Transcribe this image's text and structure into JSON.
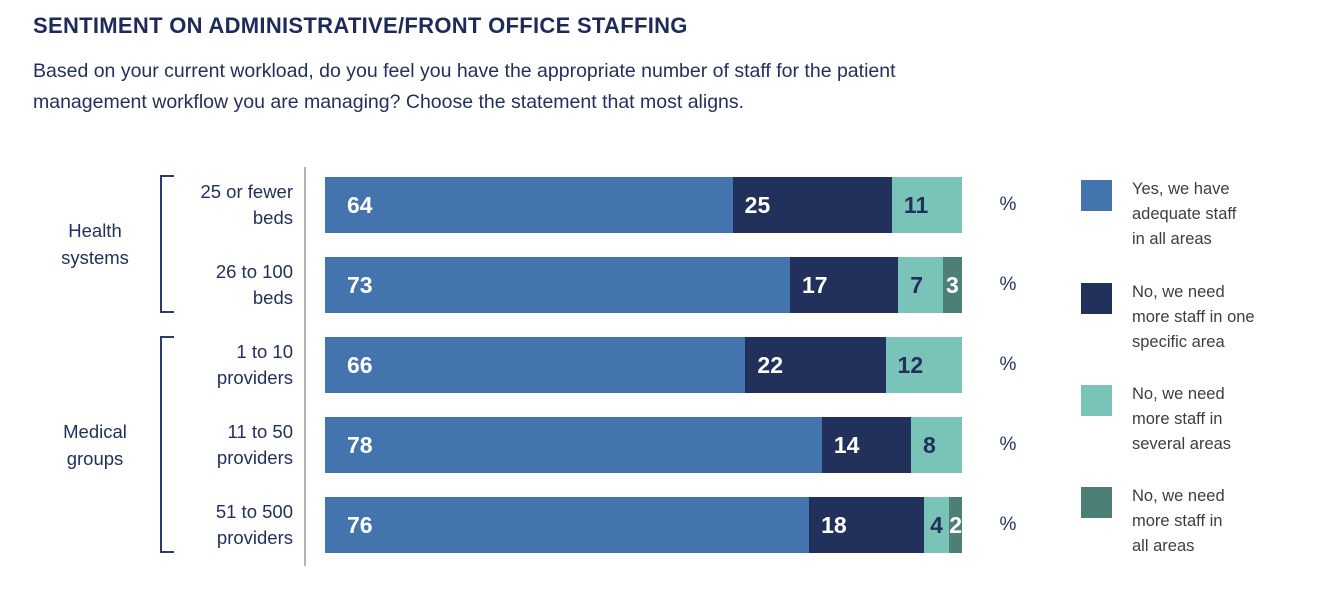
{
  "title": "SENTIMENT ON ADMINISTRATIVE/FRONT OFFICE STAFFING",
  "subtitle_line1": "Based on your current workload, do you feel you have the appropriate number of staff for the patient",
  "subtitle_line2": "management workflow you are managing? Choose the statement that most aligns.",
  "percent_symbol": "%",
  "colors": {
    "adequate_blue": "#4374ad",
    "one_area_navy": "#22305c",
    "several_areas_teal": "#7ac3b9",
    "all_areas_green": "#4c8076",
    "text_navy": "#22305c",
    "legend_text": "#3e3e40",
    "axis_line": "#b3b3b3"
  },
  "groups": [
    {
      "lines": [
        "Health",
        "systems"
      ],
      "row_indexes": [
        0,
        1
      ]
    },
    {
      "lines": [
        "Medical",
        "groups"
      ],
      "row_indexes": [
        2,
        3,
        4
      ]
    }
  ],
  "chart_data": {
    "type": "bar",
    "orientation": "horizontal",
    "stacked": true,
    "unit": "%",
    "xlim": [
      0,
      100
    ],
    "grid": false,
    "legend_position": "right",
    "title": "SENTIMENT ON ADMINISTRATIVE/FRONT OFFICE STAFFING",
    "question": "Based on your current workload, do you feel you have the appropriate number of staff for the patient management workflow you are managing? Choose the statement that most aligns.",
    "categories": [
      "25 or fewer beds",
      "26 to 100 beds",
      "1 to 10 providers",
      "11 to 50 providers",
      "51 to 500 providers"
    ],
    "categories_lines": [
      [
        "25 or fewer",
        "beds"
      ],
      [
        "26 to 100",
        "beds"
      ],
      [
        "1 to 10",
        "providers"
      ],
      [
        "11 to 50",
        "providers"
      ],
      [
        "51 to 500",
        "providers"
      ]
    ],
    "category_groups": [
      "Health systems",
      "Health systems",
      "Medical groups",
      "Medical groups",
      "Medical groups"
    ],
    "series": [
      {
        "name": "Yes, we have adequate staff in all areas",
        "color": "#4374ad",
        "label_color": "#ffffff",
        "values": [
          64,
          73,
          66,
          78,
          76
        ]
      },
      {
        "name": "No, we need more staff in one specific area",
        "color": "#22305c",
        "label_color": "#ffffff",
        "values": [
          25,
          17,
          22,
          14,
          18
        ]
      },
      {
        "name": "No, we need more staff in several areas",
        "color": "#7ac3b9",
        "label_color": "#22305c",
        "values": [
          11,
          7,
          12,
          8,
          4
        ]
      },
      {
        "name": "No, we need more staff in all areas",
        "color": "#4c8076",
        "label_color": "#ffffff",
        "values": [
          0,
          3,
          0,
          0,
          2
        ]
      }
    ]
  },
  "legend": [
    {
      "color": "#4374ad",
      "lines": [
        "Yes, we have",
        "adequate staff",
        "in all areas"
      ]
    },
    {
      "color": "#22305c",
      "lines": [
        "No, we need",
        "more staff in one",
        "specific area"
      ]
    },
    {
      "color": "#7ac3b9",
      "lines": [
        "No, we need",
        "more staff in",
        "several areas"
      ]
    },
    {
      "color": "#4c8076",
      "lines": [
        "No, we need",
        "more staff in",
        "all areas"
      ]
    }
  ]
}
